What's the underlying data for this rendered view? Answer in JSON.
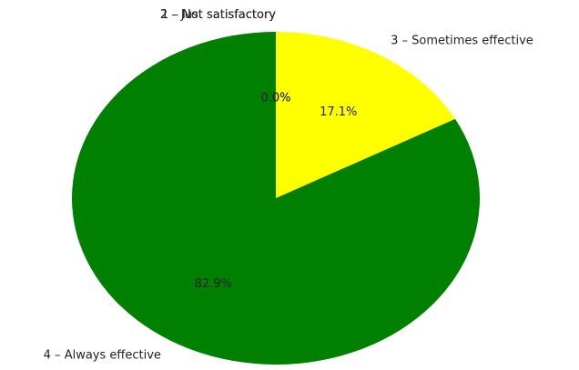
{
  "chart_data": {
    "type": "pie",
    "categories": [
      "1 – Not satisfactory",
      "2 – Just satisfactory",
      "3 – Sometimes effective",
      "4 – Always effective"
    ],
    "values": [
      0,
      0,
      17.1,
      82.9
    ],
    "value_labels": [
      "0.0%",
      "0.0%",
      "17.1%",
      "82.9%"
    ],
    "colors": [
      null,
      null,
      "yellow",
      "green"
    ],
    "start_angle": 90,
    "direction": "clockwise"
  }
}
